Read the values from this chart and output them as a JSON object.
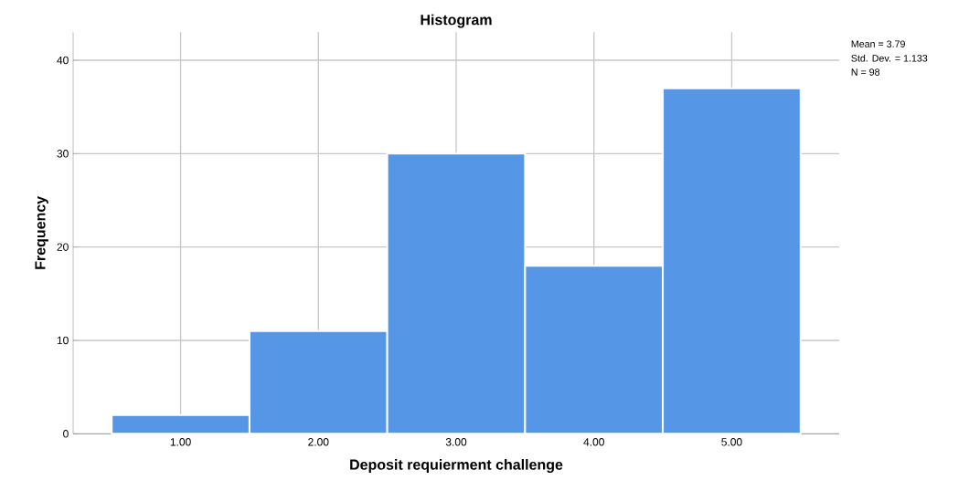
{
  "chart_data": {
    "type": "histogram",
    "title": "Histogram",
    "xlabel": "Deposit requierment challenge",
    "ylabel": "Frequency",
    "bins": [
      0.5,
      1.5,
      2.5,
      3.5,
      4.5,
      5.5
    ],
    "values": [
      2,
      11,
      30,
      18,
      37
    ],
    "color": "#5596e6",
    "xlim": [
      0.22,
      5.78
    ],
    "ylim": [
      0,
      43
    ],
    "xticks": [
      {
        "value": 1,
        "label": "1.00"
      },
      {
        "value": 2,
        "label": "2.00"
      },
      {
        "value": 3,
        "label": "3.00"
      },
      {
        "value": 4,
        "label": "4.00"
      },
      {
        "value": 5,
        "label": "5.00"
      }
    ],
    "yticks": [
      0,
      10,
      20,
      30,
      40
    ],
    "grid": true,
    "annotations": [
      "Mean = 3.79",
      "Std. Dev. = 1.133",
      "N = 98"
    ]
  }
}
